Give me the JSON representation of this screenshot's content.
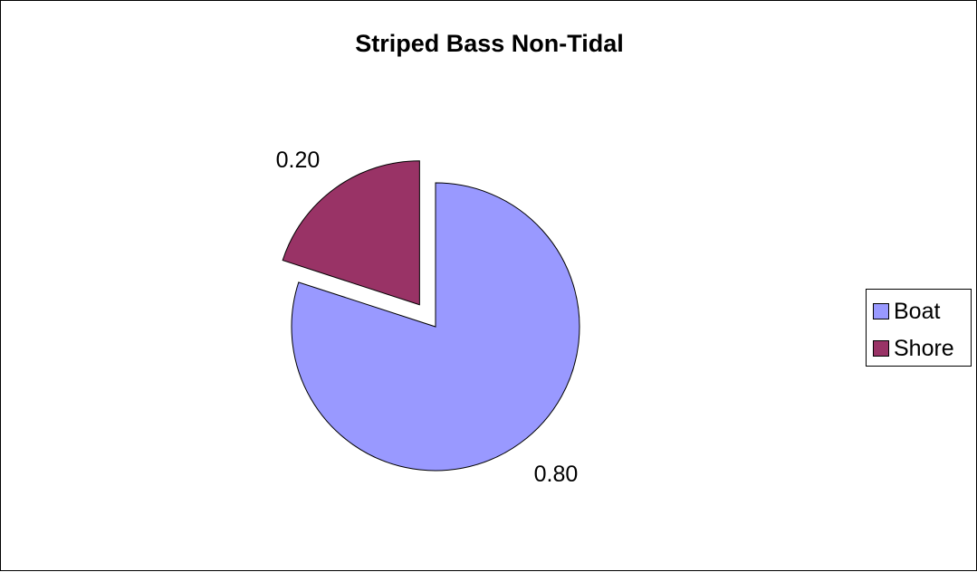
{
  "chart_data": {
    "type": "pie",
    "title": "Striped Bass Non-Tidal",
    "slices": [
      {
        "name": "Boat",
        "value": 0.8,
        "label": "0.80",
        "color": "#9999ff",
        "exploded": false
      },
      {
        "name": "Shore",
        "value": 0.2,
        "label": "0.20",
        "color": "#993366",
        "exploded": true
      }
    ],
    "legend_position": "right",
    "start_angle": "12 o'clock",
    "direction": "clockwise"
  }
}
